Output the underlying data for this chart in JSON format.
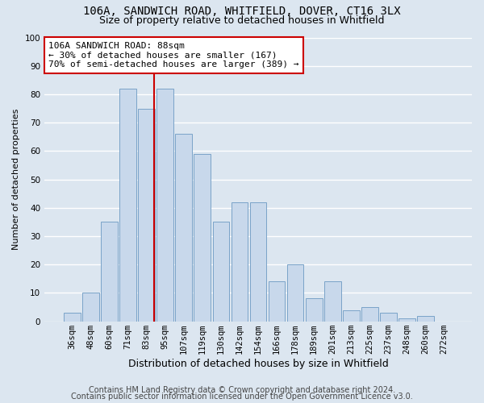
{
  "title_line1": "106A, SANDWICH ROAD, WHITFIELD, DOVER, CT16 3LX",
  "title_line2": "Size of property relative to detached houses in Whitfield",
  "xlabel": "Distribution of detached houses by size in Whitfield",
  "ylabel": "Number of detached properties",
  "bar_color": "#c8d8eb",
  "bar_edge_color": "#7aa3c8",
  "plot_bg_color": "#dce6f0",
  "fig_bg_color": "#dce6f0",
  "categories": [
    "36sqm",
    "48sqm",
    "60sqm",
    "71sqm",
    "83sqm",
    "95sqm",
    "107sqm",
    "119sqm",
    "130sqm",
    "142sqm",
    "154sqm",
    "166sqm",
    "178sqm",
    "189sqm",
    "201sqm",
    "213sqm",
    "225sqm",
    "237sqm",
    "248sqm",
    "260sqm",
    "272sqm"
  ],
  "values": [
    3,
    10,
    35,
    82,
    75,
    82,
    66,
    59,
    35,
    42,
    42,
    14,
    20,
    8,
    14,
    4,
    5,
    3,
    1,
    2,
    0
  ],
  "vline_index": 4.42,
  "vline_color": "#cc0000",
  "annotation_text": "106A SANDWICH ROAD: 88sqm\n← 30% of detached houses are smaller (167)\n70% of semi-detached houses are larger (389) →",
  "annotation_box_color": "white",
  "annotation_box_edge_color": "#cc0000",
  "ylim": [
    0,
    100
  ],
  "yticks": [
    0,
    10,
    20,
    30,
    40,
    50,
    60,
    70,
    80,
    90,
    100
  ],
  "footer_line1": "Contains HM Land Registry data © Crown copyright and database right 2024.",
  "footer_line2": "Contains public sector information licensed under the Open Government Licence v3.0.",
  "title_fontsize": 10,
  "subtitle_fontsize": 9,
  "axis_label_fontsize": 8,
  "tick_fontsize": 7.5,
  "annotation_fontsize": 8,
  "footer_fontsize": 7
}
